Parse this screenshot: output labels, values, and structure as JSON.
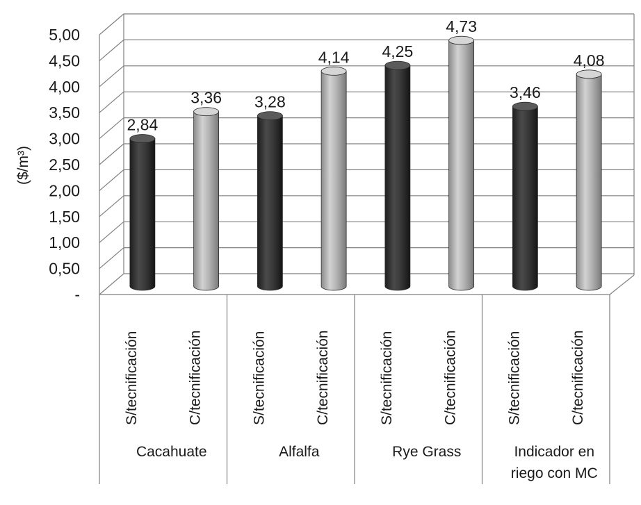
{
  "chart_data": {
    "type": "bar",
    "style": "3d-cylinder",
    "ylabel": "($/m³)",
    "ylim": [
      0,
      5
    ],
    "yticks": [
      "-",
      "0,50",
      "1,00",
      "1,50",
      "2,00",
      "2,50",
      "3,00",
      "3,50",
      "4,00",
      "4,50",
      "5,00"
    ],
    "grid": true,
    "groups": [
      {
        "label": "Cacahuate",
        "bars": [
          {
            "category": "S/tecnificación",
            "value": 2.84,
            "label": "2,84"
          },
          {
            "category": "C/tecnificación",
            "value": 3.36,
            "label": "3,36"
          }
        ]
      },
      {
        "label": "Alfalfa",
        "bars": [
          {
            "category": "S/tecnificación",
            "value": 3.28,
            "label": "3,28"
          },
          {
            "category": "C/tecnificación",
            "value": 4.14,
            "label": "4,14"
          }
        ]
      },
      {
        "label": "Rye Grass",
        "bars": [
          {
            "category": "S/tecnificación",
            "value": 4.25,
            "label": "4,25"
          },
          {
            "category": "C/tecnificación",
            "value": 4.73,
            "label": "4,73"
          }
        ]
      },
      {
        "label": "Indicador en riego con MC",
        "label_lines": [
          "Indicador en",
          "riego con MC"
        ],
        "bars": [
          {
            "category": "S/tecnificación",
            "value": 3.46,
            "label": "3,46"
          },
          {
            "category": "C/tecnificación",
            "value": 4.08,
            "label": "4,08"
          }
        ]
      }
    ],
    "colors": {
      "S/tecnificación": "#3a3a3a",
      "C/tecnificación": "#a8a8a8"
    }
  }
}
